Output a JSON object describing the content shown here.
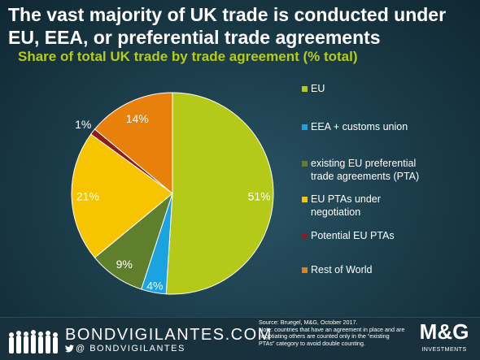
{
  "header": {
    "title": "The vast majority of UK trade is conducted under EU, EEA, or preferential trade agreements"
  },
  "chart_data": {
    "type": "pie",
    "title": "Share of total UK trade by trade agreement (% total)",
    "slices": [
      {
        "name": "EU",
        "value": 51,
        "label": "51%",
        "color": "#b5c918"
      },
      {
        "name": "EEA + customs union",
        "value": 4,
        "label": "4%",
        "color": "#1aa3e0"
      },
      {
        "name": "existing EU preferential trade agreements (PTA)",
        "value": 9,
        "label": "9%",
        "color": "#5f7f2c"
      },
      {
        "name": "EU PTAs under negotiation",
        "value": 21,
        "label": "21%",
        "color": "#f6c500"
      },
      {
        "name": "Potential EU PTAs",
        "value": 1,
        "label": "1%",
        "color": "#8e1a1a"
      },
      {
        "name": "Rest of World",
        "value": 14,
        "label": "14%",
        "color": "#e8800c"
      }
    ],
    "legend_position": "right"
  },
  "footer": {
    "brand": "BONDVIGILANTES.COM",
    "twitter": "@ BONDVIGILANTES",
    "source": "Source: Bruegel, M&G, October 2017.",
    "note": "Note: countries that have an agreement in place and are negotiating others are counted only in the “existing PTAs” category to avoid double counting.",
    "company_logo": "M&G",
    "company_sub": "INVESTMENTS"
  }
}
